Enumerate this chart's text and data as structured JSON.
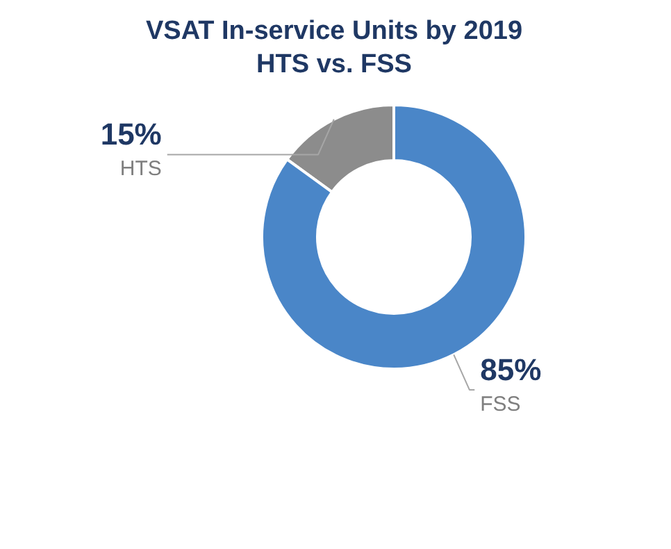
{
  "chart_data": {
    "type": "donut",
    "title": "VSAT In-service Units by 2019\nHTS vs. FSS",
    "categories": [
      "HTS",
      "FSS"
    ],
    "values": [
      15,
      85
    ],
    "colors": [
      "#8c8c8c",
      "#4a86c8"
    ],
    "value_labels": [
      "15%",
      "85%"
    ]
  }
}
